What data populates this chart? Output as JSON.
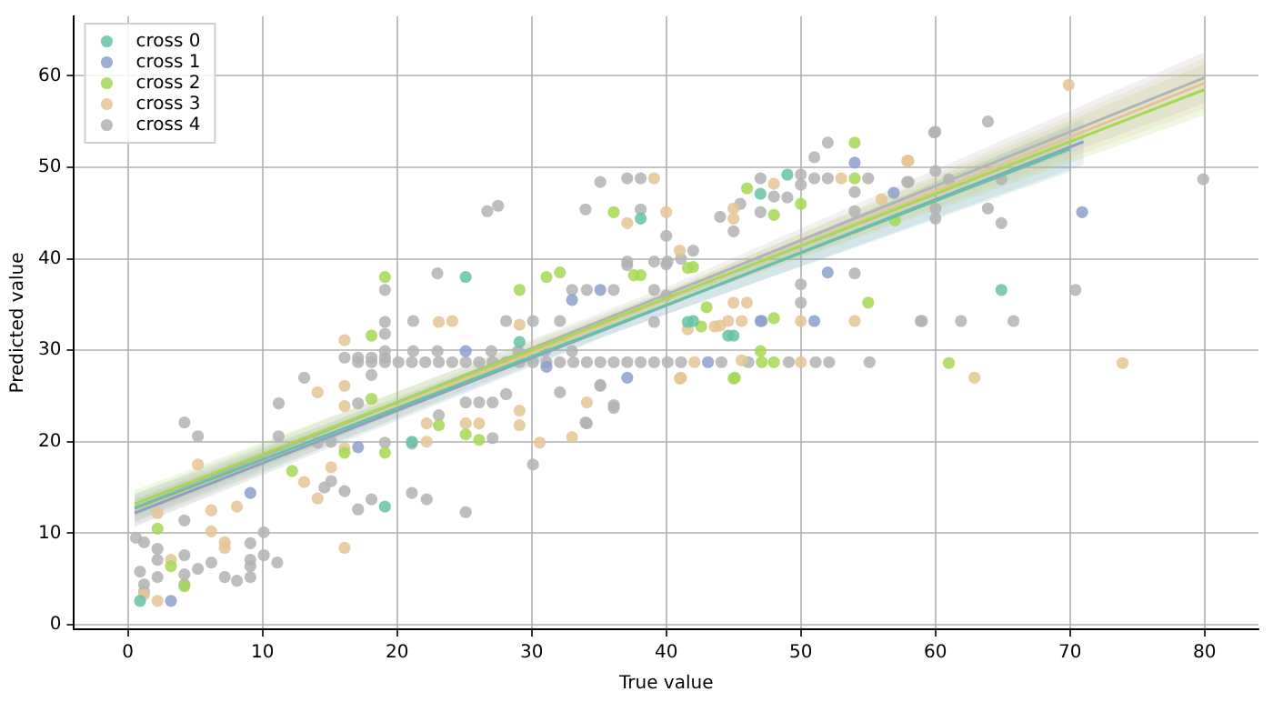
{
  "chart_data": {
    "type": "scatter",
    "xlabel": "True value",
    "ylabel": "Predicted value",
    "xlim": [
      -4,
      84
    ],
    "ylim": [
      -0.5,
      66.5
    ],
    "xticks": [
      0,
      10,
      20,
      30,
      40,
      50,
      60,
      70,
      80
    ],
    "yticks": [
      0,
      10,
      20,
      30,
      40,
      50,
      60
    ],
    "grid": true,
    "legend": "top left",
    "marker": "circle",
    "series": [
      {
        "name": "cross 0",
        "color": "#66c2a5",
        "x": [
          0.9,
          19.1,
          21.1,
          25.1,
          29.1,
          41.6,
          44.6,
          38.1,
          42.0,
          45.0,
          47.0,
          49.0,
          64.9
        ],
        "values": [
          2.6,
          12.9,
          20.0,
          38.0,
          30.9,
          33.1,
          31.6,
          44.4,
          33.2,
          31.6,
          47.1,
          49.2,
          36.6
        ]
      },
      {
        "name": "cross 1",
        "color": "#8da0cb",
        "x": [
          3.2,
          9.1,
          17.1,
          25.1,
          33.0,
          35.1,
          37.1,
          47.0,
          51.0,
          52.0,
          54.0,
          56.9,
          70.9,
          43.1,
          47.1,
          31.1
        ],
        "values": [
          2.6,
          14.4,
          19.4,
          29.9,
          35.5,
          36.6,
          27.0,
          33.2,
          33.2,
          38.5,
          50.5,
          47.2,
          45.1,
          28.7,
          33.2,
          28.2
        ]
      },
      {
        "name": "cross 2",
        "color": "#a6d854",
        "x": [
          2.2,
          3.2,
          4.2,
          12.2,
          18.1,
          18.1,
          16.1,
          19.1,
          19.1,
          25.1,
          26.1,
          23.1,
          29.1,
          31.1,
          32.1,
          37.6,
          41.6,
          42.6,
          45.1,
          47.1,
          36.1,
          38.1,
          42.0,
          43.0,
          48.0,
          55.0,
          45.0,
          47.0,
          48.0,
          46.0,
          50.0,
          48.0,
          54.0,
          54.0,
          57.0,
          61.0
        ],
        "values": [
          10.5,
          6.4,
          4.2,
          16.8,
          31.6,
          24.7,
          18.8,
          38.0,
          18.8,
          20.8,
          20.2,
          21.8,
          36.6,
          38.0,
          38.5,
          38.2,
          39.0,
          32.6,
          27.0,
          28.7,
          45.1,
          38.2,
          39.1,
          34.7,
          33.5,
          35.2,
          26.9,
          29.9,
          28.7,
          47.7,
          46.0,
          44.8,
          52.7,
          48.8,
          44.2,
          28.6
        ]
      },
      {
        "name": "cross 3",
        "color": "#e5c494",
        "x": [
          1.2,
          2.2,
          2.2,
          3.2,
          5.2,
          6.2,
          6.2,
          7.2,
          7.2,
          8.1,
          13.1,
          14.1,
          14.1,
          15.1,
          16.1,
          16.1,
          16.1,
          16.1,
          16.1,
          22.2,
          22.2,
          25.1,
          26.1,
          29.1,
          29.1,
          30.6,
          33.0,
          34.1,
          41.1,
          42.1,
          45.6,
          24.1,
          23.1,
          41.6,
          43.6,
          44.6,
          45.6,
          37.1,
          40.0,
          39.1,
          41.0,
          45.0,
          46.0,
          44.0,
          50.0,
          54.0,
          41.0,
          45.0,
          45.0,
          48.0,
          53.0,
          58.0,
          56.0,
          69.9,
          57.9,
          62.9,
          73.9,
          50.0,
          29.1
        ],
        "values": [
          3.3,
          2.6,
          12.2,
          7.1,
          17.5,
          12.5,
          10.2,
          9.0,
          8.4,
          12.9,
          15.6,
          13.8,
          25.4,
          17.2,
          31.1,
          26.1,
          23.9,
          19.3,
          8.4,
          20.0,
          22.0,
          22.0,
          22.0,
          21.8,
          23.4,
          19.9,
          20.5,
          24.3,
          27.0,
          28.7,
          28.9,
          33.2,
          33.1,
          32.3,
          32.6,
          33.2,
          33.2,
          43.9,
          45.1,
          48.8,
          40.9,
          35.2,
          35.2,
          32.7,
          33.2,
          33.2,
          26.9,
          45.5,
          44.4,
          48.2,
          48.8,
          50.7,
          46.5,
          59.0,
          50.7,
          27.0,
          28.6,
          28.7,
          32.8
        ]
      },
      {
        "name": "cross 4",
        "color": "#b3b3b3",
        "x": [
          0.6,
          1.2,
          2.2,
          2.2,
          2.2,
          4.2,
          5.2,
          6.2,
          9.1,
          9.1,
          9.1,
          9.1,
          10.1,
          11.1,
          7.2,
          8.1,
          4.2,
          4.2,
          0.9,
          1.2,
          1.2,
          4.2,
          10.1,
          4.2,
          5.2,
          13.1,
          11.2,
          11.2,
          16.1,
          17.1,
          18.1,
          19.1,
          18.1,
          17.1,
          15.1,
          14.1,
          15.1,
          14.6,
          16.1,
          17.1,
          18.1,
          21.1,
          22.2,
          21.1,
          25.1,
          30.1,
          19.1,
          27.1,
          23.1,
          25.1,
          26.1,
          27.1,
          34.1,
          32.1,
          35.1,
          36.1,
          28.1,
          21.2,
          28.1,
          30.1,
          32.1,
          19.1,
          19.1,
          19.1,
          33.0,
          34.1,
          36.1,
          37.1,
          39.1,
          40.1,
          41.1,
          39.1,
          39.1,
          17.1,
          18.1,
          19.1,
          20.1,
          21.1,
          22.1,
          23.1,
          24.1,
          25.1,
          26.1,
          27.1,
          28.1,
          29.1,
          30.1,
          31.1,
          32.1,
          33.1,
          34.1,
          35.1,
          36.1,
          37.1,
          38.1,
          39.1,
          40.1,
          41.1,
          44.1,
          46.1,
          49.1,
          51.1,
          52.1,
          55.1,
          19.1,
          21.2,
          23.0,
          27.0,
          29.0,
          31.0,
          33.0,
          35.1,
          37.1,
          38.1,
          34.0,
          38.1,
          40.0,
          40.0,
          37.1,
          42.0,
          40.0,
          35.1,
          34.0,
          36.1,
          50.0,
          50.0,
          54.0,
          59.0,
          44.0,
          45.0,
          45.5,
          47.0,
          48.0,
          49.0,
          50.0,
          50.0,
          47.0,
          51.0,
          52.0,
          54.0,
          55.0,
          52.0,
          51.0,
          58.0,
          54.0,
          60.0,
          60.0,
          60.0,
          60.0,
          63.9,
          59.9,
          57.9,
          61.0,
          63.9,
          64.9,
          64.9,
          79.9,
          70.4,
          58.9,
          61.9,
          65.8,
          23.0,
          26.7,
          27.5
        ],
        "values": [
          9.5,
          9.0,
          8.3,
          7.1,
          5.2,
          7.6,
          6.1,
          6.8,
          8.9,
          7.1,
          6.4,
          5.2,
          7.6,
          6.8,
          5.2,
          4.8,
          5.5,
          4.4,
          5.8,
          4.4,
          3.6,
          11.4,
          10.1,
          22.1,
          20.6,
          27.0,
          24.2,
          20.6,
          29.2,
          29.2,
          29.2,
          29.2,
          27.3,
          24.2,
          20.0,
          19.9,
          15.7,
          15.0,
          14.6,
          12.6,
          13.7,
          19.8,
          13.7,
          14.4,
          12.3,
          17.5,
          19.9,
          20.4,
          22.9,
          24.3,
          24.3,
          24.3,
          22.0,
          25.4,
          26.1,
          24.0,
          25.2,
          33.2,
          33.2,
          33.2,
          33.2,
          33.1,
          31.8,
          36.6,
          36.6,
          36.6,
          36.6,
          39.7,
          39.7,
          39.7,
          40.0,
          36.6,
          33.1,
          28.7,
          28.7,
          28.7,
          28.7,
          28.7,
          28.7,
          28.7,
          28.7,
          28.7,
          28.7,
          28.7,
          28.7,
          28.7,
          28.7,
          28.7,
          28.7,
          28.7,
          28.7,
          28.7,
          28.7,
          28.7,
          28.7,
          28.7,
          28.7,
          28.7,
          28.7,
          28.7,
          28.7,
          28.7,
          28.7,
          28.7,
          29.9,
          29.9,
          29.9,
          29.9,
          29.9,
          29.9,
          29.9,
          48.4,
          48.8,
          48.8,
          45.4,
          45.4,
          42.5,
          39.4,
          39.3,
          40.9,
          36.0,
          26.2,
          22.1,
          23.7,
          37.2,
          35.2,
          38.4,
          33.2,
          44.6,
          43.0,
          46.0,
          48.8,
          46.8,
          46.7,
          49.2,
          48.1,
          45.1,
          51.1,
          52.7,
          47.3,
          48.8,
          48.8,
          48.8,
          48.4,
          45.2,
          53.9,
          49.6,
          45.5,
          44.4,
          55.0,
          53.8,
          48.4,
          48.7,
          45.5,
          43.9,
          48.7,
          48.7,
          36.6,
          33.2,
          33.2,
          33.2,
          38.4,
          45.2,
          45.8
        ]
      },
      {
        "type": "line",
        "marker": "none",
        "color": "#66c2a5",
        "x": [
          0.5,
          35.5,
          70
        ],
        "values": [
          12.7,
          32.4,
          52.0
        ],
        "lower": [
          11.2,
          31.6,
          49.5
        ],
        "upper": [
          14.2,
          33.2,
          54.5
        ]
      },
      {
        "type": "line",
        "marker": "none",
        "color": "#8da0cb",
        "x": [
          0.5,
          36,
          71
        ],
        "values": [
          12.2,
          32.6,
          52.8
        ],
        "lower": [
          10.7,
          31.8,
          50.3
        ],
        "upper": [
          13.7,
          33.4,
          55.3
        ]
      },
      {
        "type": "line",
        "marker": "none",
        "color": "#a6d854",
        "x": [
          0.5,
          40,
          80
        ],
        "values": [
          13.2,
          35.7,
          58.5
        ],
        "lower": [
          11.7,
          34.9,
          55.7
        ],
        "upper": [
          14.7,
          36.5,
          61.3
        ]
      },
      {
        "type": "line",
        "marker": "none",
        "color": "#e5c494",
        "x": [
          0.5,
          40,
          80
        ],
        "values": [
          12.3,
          35.6,
          59.2
        ],
        "lower": [
          10.8,
          34.8,
          56.4
        ],
        "upper": [
          13.8,
          36.4,
          62.0
        ]
      },
      {
        "type": "line",
        "marker": "none",
        "color": "#b3b3b3",
        "x": [
          0.5,
          40,
          80
        ],
        "values": [
          12.8,
          36.1,
          59.8
        ],
        "lower": [
          11.3,
          35.3,
          57.0
        ],
        "upper": [
          14.3,
          36.9,
          62.6
        ]
      }
    ]
  }
}
